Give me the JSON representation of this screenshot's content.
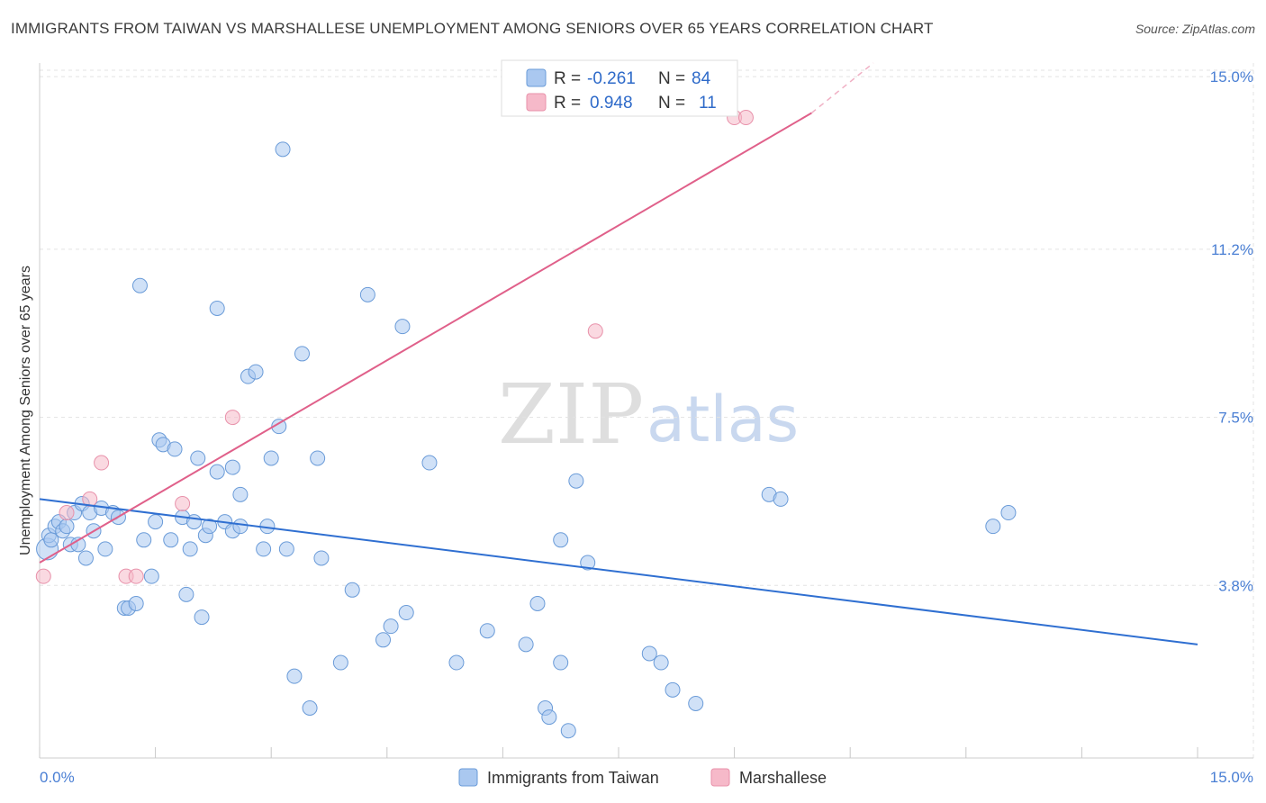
{
  "header": {
    "title": "IMMIGRANTS FROM TAIWAN VS MARSHALLESE UNEMPLOYMENT AMONG SENIORS OVER 65 YEARS CORRELATION CHART",
    "source": "Source: ZipAtlas.com"
  },
  "watermark": {
    "zip": "ZIP",
    "atlas": "atlas"
  },
  "legend_top": {
    "rows": [
      {
        "r_label": "R =",
        "r_value": "-0.261",
        "n_label": "N =",
        "n_value": "84"
      },
      {
        "r_label": "R =",
        "r_value": "0.948",
        "n_label": "N =",
        "n_value": "11"
      }
    ]
  },
  "legend_bottom": {
    "items": [
      {
        "label": "Immigrants from Taiwan"
      },
      {
        "label": "Marshallese"
      }
    ]
  },
  "colors": {
    "taiwan_fill": "#aac8f0",
    "taiwan_stroke": "#6a9bd8",
    "taiwan_line": "#2f6fd1",
    "marshallese_fill": "#f6b9c9",
    "marshallese_stroke": "#e891aa",
    "marshallese_line": "#e0608a",
    "grid": "#e3e3e3",
    "tick_text": "#4a7fd4"
  },
  "chart_data": {
    "type": "scatter",
    "title": "IMMIGRANTS FROM TAIWAN VS MARSHALLESE UNEMPLOYMENT AMONG SENIORS OVER 65 YEARS CORRELATION CHART",
    "xlabel": "",
    "ylabel": "Unemployment Among Seniors over 65 years",
    "xlim": [
      0,
      15
    ],
    "ylim": [
      0,
      15.3
    ],
    "x_tick_labels": [
      "0.0%",
      "15.0%"
    ],
    "y_ticks": [
      3.8,
      7.5,
      11.2,
      15.0
    ],
    "y_tick_labels": [
      "3.8%",
      "7.5%",
      "11.2%",
      "15.0%"
    ],
    "series": [
      {
        "name": "Immigrants from Taiwan",
        "r": -0.261,
        "n": 84,
        "trend": {
          "x0": 0.0,
          "y0": 5.7,
          "x1": 15.0,
          "y1": 2.5
        },
        "points": [
          [
            0.1,
            4.6
          ],
          [
            0.12,
            4.9
          ],
          [
            0.15,
            4.8
          ],
          [
            0.2,
            5.1
          ],
          [
            0.25,
            5.2
          ],
          [
            0.3,
            5.0
          ],
          [
            0.35,
            5.1
          ],
          [
            0.4,
            4.7
          ],
          [
            0.45,
            5.4
          ],
          [
            0.5,
            4.7
          ],
          [
            0.55,
            5.6
          ],
          [
            0.6,
            4.4
          ],
          [
            0.65,
            5.4
          ],
          [
            0.7,
            5.0
          ],
          [
            0.8,
            5.5
          ],
          [
            0.85,
            4.6
          ],
          [
            0.95,
            5.4
          ],
          [
            1.02,
            5.3
          ],
          [
            1.1,
            3.3
          ],
          [
            1.15,
            3.3
          ],
          [
            1.25,
            3.4
          ],
          [
            1.3,
            10.4
          ],
          [
            1.35,
            4.8
          ],
          [
            1.45,
            4.0
          ],
          [
            1.5,
            5.2
          ],
          [
            1.55,
            7.0
          ],
          [
            1.6,
            6.9
          ],
          [
            1.7,
            4.8
          ],
          [
            1.75,
            6.8
          ],
          [
            1.85,
            5.3
          ],
          [
            1.9,
            3.6
          ],
          [
            1.95,
            4.6
          ],
          [
            2.0,
            5.2
          ],
          [
            2.05,
            6.6
          ],
          [
            2.1,
            3.1
          ],
          [
            2.15,
            4.9
          ],
          [
            2.2,
            5.1
          ],
          [
            2.3,
            9.9
          ],
          [
            2.3,
            6.3
          ],
          [
            2.4,
            5.2
          ],
          [
            2.5,
            5.0
          ],
          [
            2.5,
            6.4
          ],
          [
            2.6,
            5.8
          ],
          [
            2.6,
            5.1
          ],
          [
            2.7,
            8.4
          ],
          [
            2.8,
            8.5
          ],
          [
            2.9,
            4.6
          ],
          [
            2.95,
            5.1
          ],
          [
            3.0,
            6.6
          ],
          [
            3.1,
            7.3
          ],
          [
            3.15,
            13.4
          ],
          [
            3.2,
            4.6
          ],
          [
            3.3,
            1.8
          ],
          [
            3.4,
            8.9
          ],
          [
            3.5,
            1.1
          ],
          [
            3.6,
            6.6
          ],
          [
            3.65,
            4.4
          ],
          [
            3.9,
            2.1
          ],
          [
            4.05,
            3.7
          ],
          [
            4.25,
            10.2
          ],
          [
            4.45,
            2.6
          ],
          [
            4.55,
            2.9
          ],
          [
            4.7,
            9.5
          ],
          [
            4.75,
            3.2
          ],
          [
            5.05,
            6.5
          ],
          [
            5.4,
            2.1
          ],
          [
            5.8,
            2.8
          ],
          [
            6.3,
            2.5
          ],
          [
            6.45,
            3.4
          ],
          [
            6.55,
            1.1
          ],
          [
            6.6,
            0.9
          ],
          [
            6.75,
            2.1
          ],
          [
            6.75,
            4.8
          ],
          [
            6.85,
            0.6
          ],
          [
            6.95,
            6.1
          ],
          [
            7.1,
            4.3
          ],
          [
            7.9,
            2.3
          ],
          [
            8.05,
            2.1
          ],
          [
            8.2,
            1.5
          ],
          [
            8.5,
            1.2
          ],
          [
            9.45,
            5.8
          ],
          [
            9.6,
            5.7
          ],
          [
            12.35,
            5.1
          ],
          [
            12.55,
            5.4
          ]
        ]
      },
      {
        "name": "Marshallese",
        "r": 0.948,
        "n": 11,
        "trend": {
          "x0": 0.0,
          "y0": 4.3,
          "x1": 10.0,
          "y1": 14.2,
          "dash_x1": 10.8,
          "dash_y1": 15.3
        },
        "points": [
          [
            0.05,
            4.0
          ],
          [
            0.35,
            5.4
          ],
          [
            0.65,
            5.7
          ],
          [
            0.8,
            6.5
          ],
          [
            1.12,
            4.0
          ],
          [
            1.25,
            4.0
          ],
          [
            1.85,
            5.6
          ],
          [
            2.5,
            7.5
          ],
          [
            7.2,
            9.4
          ],
          [
            9.0,
            14.1
          ],
          [
            9.15,
            14.1
          ]
        ]
      }
    ]
  }
}
